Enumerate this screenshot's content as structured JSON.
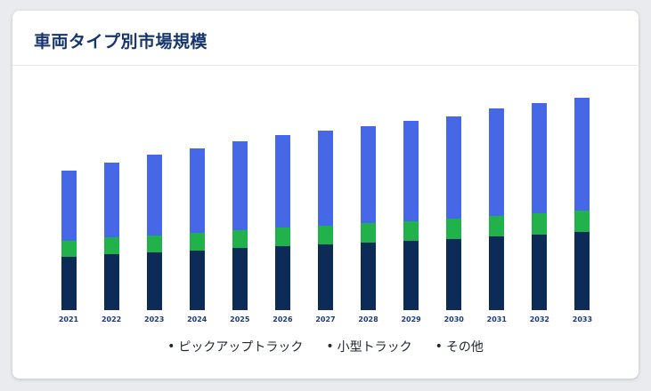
{
  "card": {
    "title": "車両タイプ別市場規模"
  },
  "chart_data": {
    "type": "bar",
    "stacked": true,
    "title": "車両タイプ別市場規模",
    "xlabel": "",
    "ylabel": "",
    "grid": false,
    "legend_position": "bottom",
    "ylim": [
      0,
      250
    ],
    "categories": [
      "2021",
      "2022",
      "2023",
      "2024",
      "2025",
      "2026",
      "2027",
      "2028",
      "2029",
      "2030",
      "2031",
      "2032",
      "2033"
    ],
    "series": [
      {
        "name": "ピックアップトラック",
        "color": "#0d2b57",
        "values": [
          60,
          63,
          65,
          67,
          70,
          72,
          74,
          76,
          78,
          80,
          83,
          85,
          88
        ]
      },
      {
        "name": "小型トラック",
        "color": "#21b24b",
        "values": [
          18,
          19,
          19,
          20,
          20,
          21,
          21,
          22,
          22,
          23,
          23,
          24,
          24
        ]
      },
      {
        "name": "その他",
        "color": "#4667e6",
        "values": [
          79,
          84,
          91,
          95,
          100,
          104,
          107,
          109,
          113,
          115,
          121,
          124,
          127
        ]
      }
    ]
  }
}
